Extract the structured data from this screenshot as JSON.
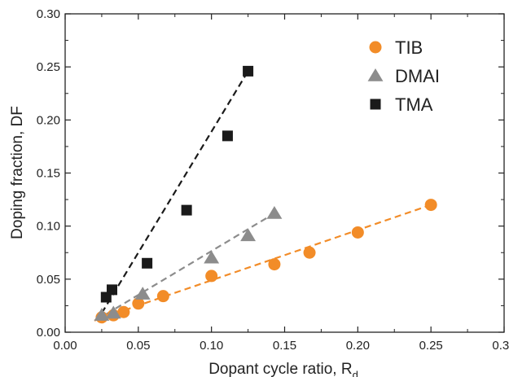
{
  "chart_data": {
    "type": "scatter",
    "title": "",
    "xlabel": "Dopant cycle ratio, R",
    "xlabel_subscript": "d",
    "ylabel": "Doping fraction, DF",
    "xlim": [
      0.0,
      0.3
    ],
    "ylim": [
      0.0,
      0.3
    ],
    "xticks": [
      "0.00",
      "0.05",
      "0.10",
      "0.15",
      "0.20",
      "0.25",
      "0.30"
    ],
    "yticks": [
      "0.00",
      "0.05",
      "0.10",
      "0.15",
      "0.20",
      "0.25",
      "0.30"
    ],
    "grid": false,
    "legend_position": "top-right",
    "series": [
      {
        "name": "TIB",
        "marker": "circle",
        "color": "#f28c28",
        "x": [
          0.025,
          0.033,
          0.04,
          0.05,
          0.067,
          0.1,
          0.143,
          0.167,
          0.2,
          0.25
        ],
        "y": [
          0.014,
          0.016,
          0.019,
          0.027,
          0.034,
          0.053,
          0.064,
          0.075,
          0.094,
          0.12
        ],
        "fit": {
          "x": [
            0.02,
            0.25
          ],
          "y": [
            0.011,
            0.12
          ],
          "dashed": true
        }
      },
      {
        "name": "DMAI",
        "marker": "triangle",
        "color": "#8c8c8c",
        "x": [
          0.025,
          0.033,
          0.053,
          0.1,
          0.125,
          0.143
        ],
        "y": [
          0.016,
          0.018,
          0.036,
          0.07,
          0.091,
          0.112
        ],
        "fit": {
          "x": [
            0.022,
            0.143
          ],
          "y": [
            0.012,
            0.112
          ],
          "dashed": true
        }
      },
      {
        "name": "TMA",
        "marker": "square",
        "color": "#1a1a1a",
        "x": [
          0.028,
          0.032,
          0.056,
          0.083,
          0.111,
          0.125
        ],
        "y": [
          0.033,
          0.04,
          0.065,
          0.115,
          0.185,
          0.246
        ],
        "fit": {
          "x": [
            0.025,
            0.125
          ],
          "y": [
            0.018,
            0.246
          ],
          "dashed": true
        }
      }
    ]
  }
}
